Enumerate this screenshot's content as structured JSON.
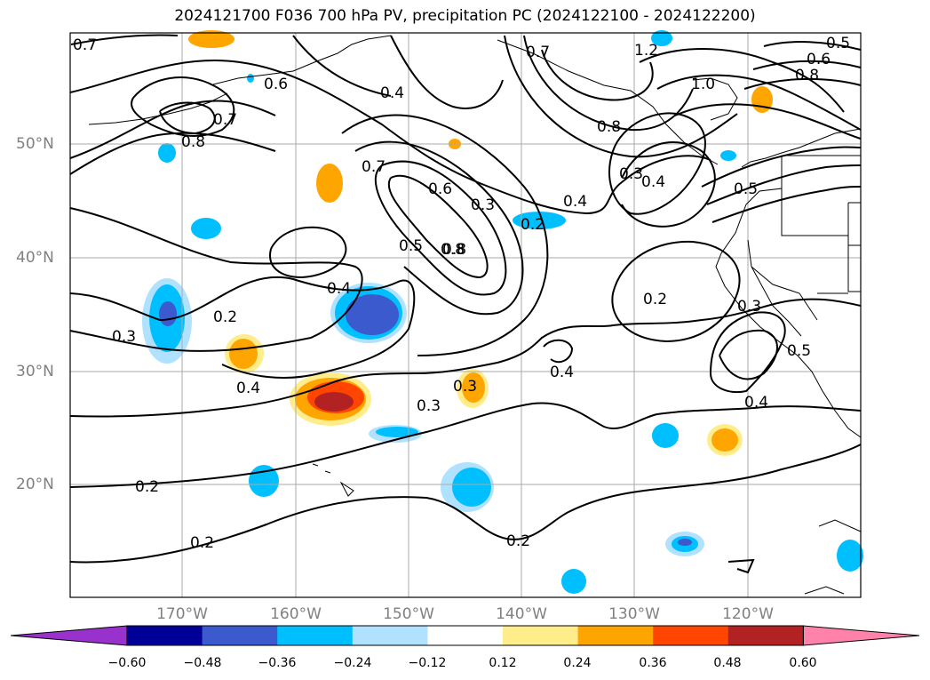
{
  "title": "2024121700 F036 700 hPa PV, precipitation PC (2024122100 - 2024122200)",
  "lat_labels": [
    "50°N",
    "40°N",
    "30°N",
    "20°N"
  ],
  "lon_labels": [
    "170°W",
    "160°W",
    "150°W",
    "140°W",
    "130°W",
    "120°W"
  ],
  "colorbar": {
    "colors": [
      "#9932cc",
      "#000099",
      "#3a5acd",
      "#00bfff",
      "#b0e2ff",
      "#ffffff",
      "#ffec8b",
      "#ffa500",
      "#ff4500",
      "#b22222",
      "#ff82ab"
    ],
    "labels": [
      "−0.60",
      "−0.48",
      "−0.36",
      "−0.24",
      "−0.12",
      "0.12",
      "0.24",
      "0.36",
      "0.48",
      "0.60"
    ]
  },
  "contour_labels": [
    "0.7",
    "0.6",
    "0.7",
    "0.8",
    "0.7",
    "0.4",
    "1.2",
    "0.5",
    "0.6",
    "0.8",
    "1.0",
    "0.8",
    "0.7",
    "0.6",
    "0.3",
    "0.8",
    "0.3",
    "0.4",
    "0.5",
    "0.2",
    "0.4",
    "0.5",
    "0.8",
    "0.4",
    "0.2",
    "0.3",
    "0.2",
    "0.3",
    "0.3",
    "0.4",
    "0.3",
    "0.4",
    "0.5",
    "0.4",
    "0.2",
    "0.2",
    "0.2"
  ]
}
